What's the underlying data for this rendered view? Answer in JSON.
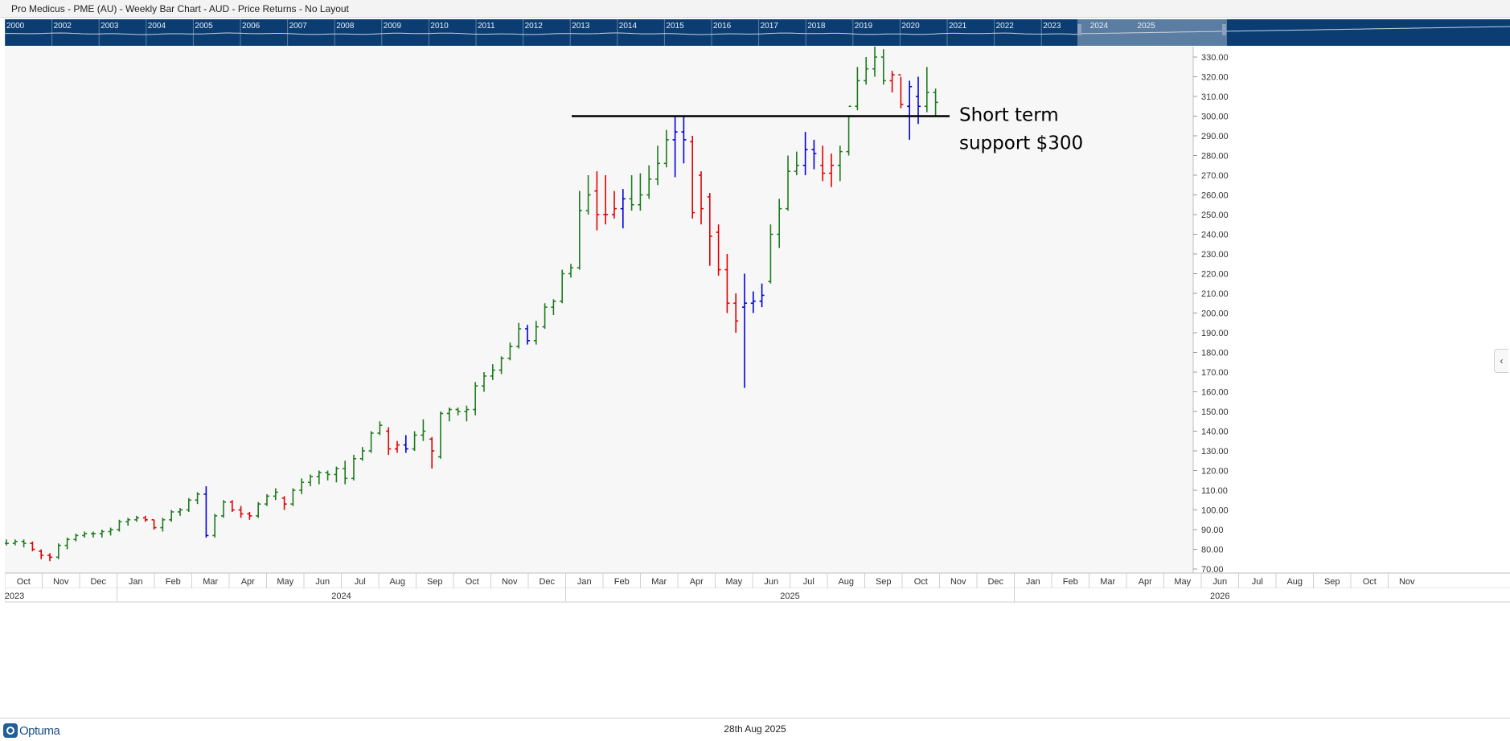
{
  "header": {
    "title": "Pro Medicus - PME (AU) - Weekly Bar Chart - AUD - Price Returns - No Layout"
  },
  "overview": {
    "years": [
      "2000",
      "2002",
      "2003",
      "2004",
      "2005",
      "2006",
      "2007",
      "2008",
      "2009",
      "2010",
      "2011",
      "2012",
      "2013",
      "2014",
      "2015",
      "2016",
      "2017",
      "2018",
      "2019",
      "2020",
      "2021",
      "2022",
      "2023",
      "2024",
      "2025"
    ]
  },
  "footer": {
    "brand": "Optuma",
    "date": "28th Aug 2025"
  },
  "collapse_icon": "chevron-left-icon",
  "colors": {
    "up": "#1e7b1e",
    "down": "#e00000",
    "inside": "#0000e0",
    "overview_bg": "#0b3d73",
    "support_line": "#000000"
  },
  "chart_data": {
    "type": "bar",
    "style": "ohlc-weekly",
    "x_unit": "week starting",
    "ylim": [
      70,
      340
    ],
    "y_ticks": [
      "330.00",
      "320.00",
      "310.00",
      "300.00",
      "290.00",
      "280.00",
      "270.00",
      "260.00",
      "250.00",
      "240.00",
      "230.00",
      "220.00",
      "210.00",
      "200.00",
      "190.00",
      "180.00",
      "170.00",
      "160.00",
      "150.00",
      "140.00",
      "130.00",
      "120.00",
      "110.00",
      "100.00",
      "90.00",
      "80.00",
      "70.00"
    ],
    "x_months": [
      "Oct",
      "Nov",
      "Dec",
      "Jan",
      "Feb",
      "Mar",
      "Apr",
      "May",
      "Jun",
      "Jul",
      "Aug",
      "Sep",
      "Oct",
      "Nov",
      "Dec",
      "Jan",
      "Feb",
      "Mar",
      "Apr",
      "May",
      "Jun",
      "Jul",
      "Aug",
      "Sep",
      "Oct",
      "Nov",
      "Dec",
      "Jan",
      "Feb",
      "Mar",
      "Apr",
      "May",
      "Jun",
      "Jul",
      "Aug",
      "Sep",
      "Oct",
      "Nov"
    ],
    "x_years": [
      {
        "label": "2023",
        "from": "2023-10",
        "to": "2023-12"
      },
      {
        "label": "2024",
        "from": "2024-01",
        "to": "2024-12"
      },
      {
        "label": "2025",
        "from": "2025-01",
        "to": "2025-12"
      },
      {
        "label": "2026",
        "from": "2026-01",
        "to": "2026-11"
      }
    ],
    "grid": false,
    "annotation": {
      "text_lines": [
        "Short term",
        "support $300"
      ],
      "support_level": 300
    },
    "bars": [
      [
        83,
        85,
        82,
        83,
        "up"
      ],
      [
        83,
        85,
        82,
        84,
        "up"
      ],
      [
        84,
        85,
        81,
        83,
        "up"
      ],
      [
        83,
        84,
        79,
        80,
        "down"
      ],
      [
        79,
        80,
        75,
        77,
        "down"
      ],
      [
        77,
        78,
        74,
        76,
        "down"
      ],
      [
        76,
        83,
        75,
        82,
        "up"
      ],
      [
        82,
        86,
        80,
        85,
        "up"
      ],
      [
        85,
        88,
        84,
        87,
        "up"
      ],
      [
        87,
        89,
        86,
        88,
        "up"
      ],
      [
        88,
        89,
        86,
        88,
        "up"
      ],
      [
        88,
        90,
        86,
        89,
        "up"
      ],
      [
        89,
        91,
        87,
        90,
        "up"
      ],
      [
        90,
        95,
        89,
        94,
        "up"
      ],
      [
        94,
        96,
        92,
        95,
        "up"
      ],
      [
        95,
        97,
        94,
        96,
        "up"
      ],
      [
        96,
        97,
        94,
        95,
        "down"
      ],
      [
        95,
        95,
        90,
        91,
        "down"
      ],
      [
        91,
        96,
        89,
        95,
        "up"
      ],
      [
        95,
        100,
        94,
        99,
        "up"
      ],
      [
        99,
        101,
        97,
        100,
        "up"
      ],
      [
        100,
        106,
        99,
        105,
        "up"
      ],
      [
        105,
        109,
        103,
        108,
        "up"
      ],
      [
        108,
        112,
        86,
        87,
        "inside"
      ],
      [
        87,
        98,
        86,
        97,
        "up"
      ],
      [
        97,
        105,
        96,
        104,
        "up"
      ],
      [
        104,
        105,
        99,
        100,
        "down"
      ],
      [
        100,
        102,
        96,
        98,
        "down"
      ],
      [
        98,
        99,
        95,
        97,
        "down"
      ],
      [
        97,
        104,
        96,
        103,
        "up"
      ],
      [
        103,
        108,
        102,
        107,
        "up"
      ],
      [
        107,
        111,
        105,
        109,
        "up"
      ],
      [
        106,
        107,
        100,
        103,
        "down"
      ],
      [
        103,
        111,
        102,
        110,
        "up"
      ],
      [
        110,
        116,
        108,
        114,
        "up"
      ],
      [
        114,
        118,
        112,
        117,
        "up"
      ],
      [
        117,
        120,
        113,
        119,
        "up"
      ],
      [
        119,
        120,
        115,
        118,
        "up"
      ],
      [
        118,
        122,
        114,
        121,
        "up"
      ],
      [
        121,
        125,
        113,
        116,
        "up"
      ],
      [
        116,
        128,
        115,
        126,
        "up"
      ],
      [
        126,
        132,
        125,
        130,
        "up"
      ],
      [
        130,
        140,
        129,
        139,
        "up"
      ],
      [
        139,
        145,
        138,
        143,
        "up"
      ],
      [
        140,
        142,
        128,
        131,
        "down"
      ],
      [
        131,
        135,
        129,
        133,
        "down"
      ],
      [
        133,
        138,
        129,
        131,
        "inside"
      ],
      [
        131,
        140,
        130,
        138,
        "up"
      ],
      [
        138,
        146,
        135,
        140,
        "up"
      ],
      [
        136,
        137,
        121,
        130,
        "down"
      ],
      [
        127,
        150,
        126,
        149,
        "up"
      ],
      [
        149,
        152,
        145,
        151,
        "up"
      ],
      [
        151,
        152,
        148,
        150,
        "up"
      ],
      [
        150,
        153,
        145,
        151,
        "up"
      ],
      [
        151,
        165,
        148,
        163,
        "up"
      ],
      [
        163,
        170,
        160,
        168,
        "up"
      ],
      [
        168,
        174,
        166,
        171,
        "up"
      ],
      [
        171,
        178,
        169,
        177,
        "up"
      ],
      [
        177,
        185,
        176,
        183,
        "up"
      ],
      [
        183,
        195,
        182,
        192,
        "up"
      ],
      [
        192,
        194,
        184,
        186,
        "inside"
      ],
      [
        186,
        196,
        184,
        193,
        "up"
      ],
      [
        193,
        205,
        192,
        203,
        "up"
      ],
      [
        203,
        207,
        199,
        206,
        "up"
      ],
      [
        206,
        222,
        205,
        220,
        "up"
      ],
      [
        220,
        225,
        218,
        223,
        "up"
      ],
      [
        223,
        262,
        222,
        252,
        "up"
      ],
      [
        252,
        270,
        250,
        260,
        "up"
      ],
      [
        262,
        272,
        242,
        250,
        "down"
      ],
      [
        250,
        270,
        245,
        250,
        "down"
      ],
      [
        250,
        262,
        248,
        253,
        "down"
      ],
      [
        253,
        263,
        243,
        258,
        "inside"
      ],
      [
        258,
        270,
        252,
        255,
        "up"
      ],
      [
        255,
        271,
        252,
        260,
        "up"
      ],
      [
        260,
        275,
        258,
        268,
        "up"
      ],
      [
        268,
        285,
        265,
        276,
        "up"
      ],
      [
        276,
        293,
        274,
        288,
        "up"
      ],
      [
        288,
        300,
        269,
        292,
        "inside"
      ],
      [
        292,
        300,
        276,
        288,
        "inside"
      ],
      [
        287,
        290,
        248,
        251,
        "down"
      ],
      [
        270,
        272,
        245,
        253,
        "down"
      ],
      [
        259,
        261,
        224,
        239,
        "down"
      ],
      [
        241,
        245,
        219,
        222,
        "down"
      ],
      [
        222,
        230,
        200,
        205,
        "down"
      ],
      [
        205,
        210,
        190,
        196,
        "down"
      ],
      [
        203,
        220,
        162,
        205,
        "inside"
      ],
      [
        205,
        211,
        200,
        206,
        "inside"
      ],
      [
        206,
        215,
        203,
        209,
        "inside"
      ],
      [
        216,
        245,
        215,
        240,
        "up"
      ],
      [
        240,
        258,
        233,
        253,
        "up"
      ],
      [
        253,
        280,
        252,
        272,
        "up"
      ],
      [
        272,
        282,
        270,
        275,
        "up"
      ],
      [
        275,
        292,
        270,
        283,
        "inside"
      ],
      [
        283,
        288,
        273,
        281,
        "inside"
      ],
      [
        275,
        285,
        267,
        271,
        "down"
      ],
      [
        271,
        281,
        264,
        275,
        "down"
      ],
      [
        275,
        285,
        267,
        282,
        "up"
      ],
      [
        282,
        300,
        280,
        305,
        "up"
      ],
      [
        305,
        325,
        303,
        318,
        "up"
      ],
      [
        318,
        330,
        316,
        324,
        "up"
      ],
      [
        324,
        337,
        320,
        330,
        "up"
      ],
      [
        330,
        334,
        316,
        318,
        "up"
      ],
      [
        318,
        323,
        312,
        321,
        "down"
      ],
      [
        321,
        320,
        304,
        306,
        "down"
      ],
      [
        305,
        318,
        288,
        315,
        "inside"
      ],
      [
        310,
        320,
        296,
        305,
        "inside"
      ],
      [
        305,
        325,
        302,
        312,
        "up"
      ],
      [
        312,
        314,
        300,
        307,
        "up"
      ]
    ]
  }
}
